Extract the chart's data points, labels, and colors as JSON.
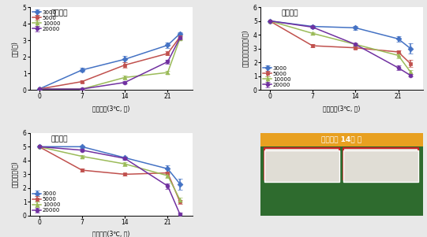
{
  "title_text": "균상재배",
  "x_vals": [
    0,
    7,
    14,
    21,
    23
  ],
  "xlabel": "저장기간(3℃, 일)",
  "legend_labels": [
    "3000",
    "5000",
    "10000",
    "20000"
  ],
  "colors": [
    "#4472c4",
    "#c0504d",
    "#9bbb59",
    "#7030a0"
  ],
  "markers": [
    "D",
    "s",
    "^",
    "o"
  ],
  "markersize": 3.5,
  "linewidth": 1.1,
  "plot1_ylabel": "이취(점)",
  "plot1_ylim": [
    0,
    5
  ],
  "plot1_yticks": [
    0,
    1,
    2,
    3,
    4,
    5
  ],
  "plot1_legend_loc": "upper left",
  "plot1_data": [
    [
      0.05,
      1.2,
      1.85,
      2.7,
      3.4
    ],
    [
      0.05,
      0.5,
      1.5,
      2.2,
      3.2
    ],
    [
      0.05,
      0.05,
      0.75,
      1.05,
      3.1
    ],
    [
      0.05,
      0.05,
      0.45,
      1.7,
      3.15
    ]
  ],
  "plot1_errors": [
    [
      0,
      0.12,
      0.18,
      0.15,
      0.1
    ],
    [
      0,
      0.08,
      0.15,
      0.12,
      0.1
    ],
    [
      0,
      0.05,
      0.12,
      0.1,
      0.1
    ],
    [
      0,
      0.05,
      0.08,
      0.12,
      0.1
    ]
  ],
  "plot2_ylabel": "대변색조직물러짐(점)",
  "plot2_ylim": [
    0,
    6
  ],
  "plot2_yticks": [
    0,
    1,
    2,
    3,
    4,
    5,
    6
  ],
  "plot2_legend_loc": "lower left",
  "plot2_data": [
    [
      5.0,
      4.6,
      4.5,
      3.7,
      3.0
    ],
    [
      5.0,
      3.2,
      3.05,
      2.75,
      1.9
    ],
    [
      5.0,
      4.1,
      3.3,
      2.5,
      1.3
    ],
    [
      5.0,
      4.55,
      3.3,
      1.6,
      1.05
    ]
  ],
  "plot2_errors": [
    [
      0,
      0.1,
      0.15,
      0.2,
      0.35
    ],
    [
      0,
      0.1,
      0.1,
      0.1,
      0.25
    ],
    [
      0,
      0.1,
      0.1,
      0.2,
      0.15
    ],
    [
      0,
      0.1,
      0.1,
      0.15,
      0.1
    ]
  ],
  "plot3_ylabel": "전체적품질(점)",
  "plot3_ylim": [
    0,
    6
  ],
  "plot3_yticks": [
    0,
    1,
    2,
    3,
    4,
    5,
    6
  ],
  "plot3_legend_loc": "lower left",
  "plot3_data": [
    [
      5.0,
      5.0,
      4.2,
      3.4,
      2.3
    ],
    [
      5.0,
      3.3,
      3.0,
      3.1,
      1.0
    ],
    [
      5.0,
      4.3,
      3.75,
      2.9,
      1.15
    ],
    [
      5.0,
      4.75,
      4.15,
      2.15,
      0.1
    ]
  ],
  "plot3_errors": [
    [
      0,
      0.1,
      0.1,
      0.25,
      0.4
    ],
    [
      0,
      0.1,
      0.1,
      0.1,
      0.15
    ],
    [
      0,
      0.1,
      0.15,
      0.15,
      0.15
    ],
    [
      0,
      0.1,
      0.1,
      0.2,
      0.15
    ]
  ],
  "photo_label": "저온저장 14일 후",
  "photo_header_color": "#e8a020",
  "photo_bg_color": "#2e6b2e",
  "photo_inner_bg": "#e0ddd5",
  "photo_border_red": "#cc2222",
  "photo_border_white": "#ffffff",
  "fig_bg": "#e8e8e8"
}
